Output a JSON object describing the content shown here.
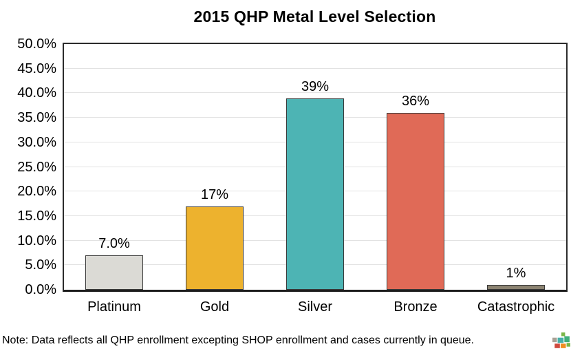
{
  "title": "2015 QHP Metal Level Selection",
  "note": "Note: Data reflects all QHP enrollment excepting SHOP enrollment and cases currently in queue.",
  "logo": {
    "name": "mosaic-logo-icon",
    "tile_colors": [
      "#7ab648",
      "#a9a296",
      "#45b0a8",
      "#3fae7a",
      "#cf4a3e",
      "#ef8d22",
      "#7ab648"
    ]
  },
  "chart_data": {
    "type": "bar",
    "title": "2015 QHP Metal Level Selection",
    "categories": [
      "Platinum",
      "Gold",
      "Silver",
      "Bronze",
      "Catastrophic"
    ],
    "values": [
      7,
      17,
      39,
      36,
      1
    ],
    "bar_labels": [
      "7.0%",
      "17%",
      "39%",
      "36%",
      "1%"
    ],
    "bar_colors": [
      "#dbdad5",
      "#edb22e",
      "#4db4b4",
      "#e06a57",
      "#8c8472"
    ],
    "xlabel": "",
    "ylabel": "",
    "ylim": [
      0,
      50
    ],
    "ytick_step": 5,
    "ytick_labels": [
      "0.0%",
      "5.0%",
      "10.0%",
      "15.0%",
      "20.0%",
      "25.0%",
      "30.0%",
      "35.0%",
      "40.0%",
      "45.0%",
      "50.0%"
    ],
    "grid": true,
    "legend_position": "none"
  }
}
